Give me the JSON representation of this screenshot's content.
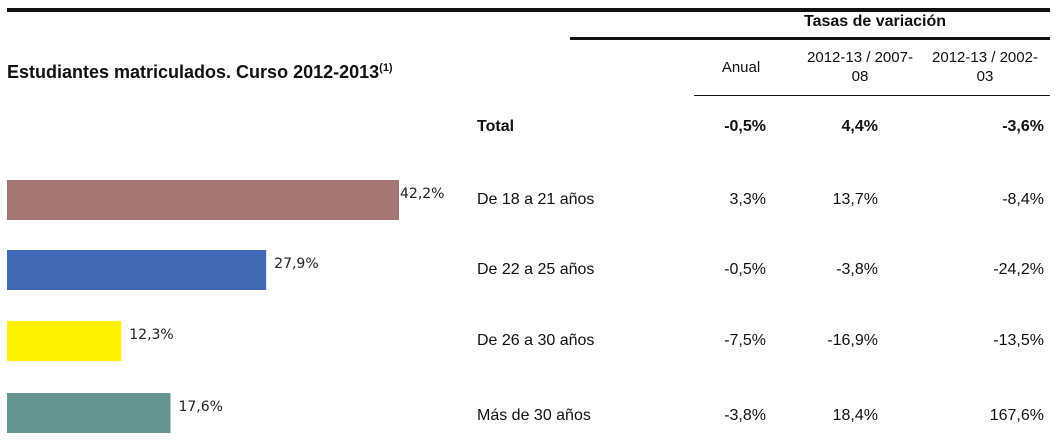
{
  "title": "Estudiantes matriculados. Curso 2012-2013",
  "title_superscript": "(1)",
  "table": {
    "group_header": "Tasas de variación",
    "columns": [
      "Anual",
      "2012-13 / 2007-08",
      "2012-13 / 2002-03"
    ],
    "total": {
      "label": "Total",
      "values": [
        "-0,5%",
        "4,4%",
        "-3,6%"
      ]
    },
    "rows": [
      [
        "3,3%",
        "13,7%",
        "-8,4%"
      ],
      [
        "-0,5%",
        "-3,8%",
        "-24,2%"
      ],
      [
        "-7,5%",
        "-16,9%",
        "-13,5%"
      ],
      [
        "-3,8%",
        "18,4%",
        "167,6%"
      ]
    ]
  },
  "chart_data": {
    "type": "bar",
    "orientation": "horizontal",
    "categories": [
      "De 18 a 21 años",
      "De 22 a 25 años",
      "De 26 a 30 años",
      "Más de 30 años"
    ],
    "values": [
      42.2,
      27.9,
      12.3,
      17.6
    ],
    "value_labels": [
      "42,2%",
      "27,9%",
      "12,3%",
      "17,6%"
    ],
    "colors": [
      "#a57574",
      "#4169b4",
      "#fff200",
      "#669490"
    ]
  }
}
